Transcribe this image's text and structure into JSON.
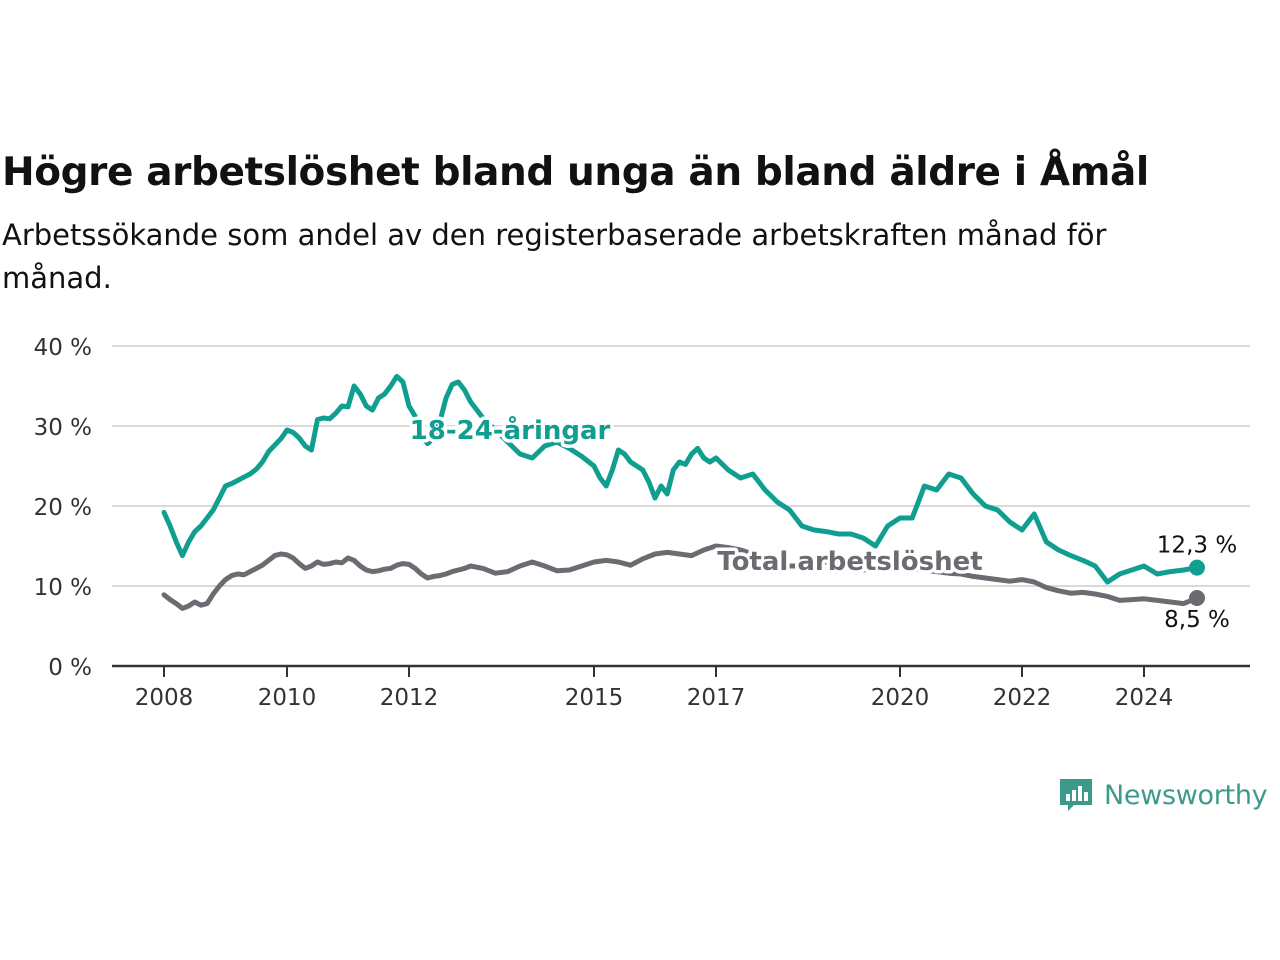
{
  "title": "Högre arbetslöshet bland unga än bland äldre i Åmål",
  "subtitle": "Arbetssökande som andel av den registerbaserade arbetskraften månad för månad.",
  "brand": {
    "name": "Newsworthy",
    "icon": "newsworthy-logo-icon",
    "color": "#3d9a8b"
  },
  "chart_data": {
    "type": "line",
    "y_ticks": [
      "0 %",
      "10 %",
      "20 %",
      "30 %",
      "40 %"
    ],
    "ylim": [
      0,
      40
    ],
    "x_ticks": [
      {
        "label": "2008",
        "value": 2008.0
      },
      {
        "label": "2010",
        "value": 2010.0
      },
      {
        "label": "2012",
        "value": 2012.0
      },
      {
        "label": "2015",
        "value": 2015.0
      },
      {
        "label": "2017",
        "value": 2017.0
      },
      {
        "label": "2020",
        "value": 2020.0
      },
      {
        "label": "2022",
        "value": 2022.0
      },
      {
        "label": "2024",
        "value": 2024.0
      }
    ],
    "xlim": [
      2006.2,
      2024.8
    ],
    "grid": true,
    "series": [
      {
        "name": "18-24-åringar",
        "color": "#109e90",
        "end_label": "12,3 %",
        "x": [
          2008.0,
          2008.1,
          2008.2,
          2008.3,
          2008.4,
          2008.5,
          2008.6,
          2008.7,
          2008.8,
          2008.9,
          2009.0,
          2009.1,
          2009.2,
          2009.3,
          2009.4,
          2009.5,
          2009.6,
          2009.7,
          2009.8,
          2009.9,
          2010.0,
          2010.1,
          2010.2,
          2010.3,
          2010.4,
          2010.5,
          2010.6,
          2010.7,
          2010.8,
          2010.9,
          2011.0,
          2011.1,
          2011.2,
          2011.3,
          2011.4,
          2011.5,
          2011.6,
          2011.7,
          2011.8,
          2011.9,
          2012.0,
          2012.1,
          2012.2,
          2012.3,
          2012.4,
          2012.5,
          2012.6,
          2012.7,
          2012.8,
          2012.9,
          2013.0,
          2013.2,
          2013.4,
          2013.6,
          2013.8,
          2014.0,
          2014.2,
          2014.4,
          2014.6,
          2014.8,
          2015.0,
          2015.1,
          2015.2,
          2015.3,
          2015.4,
          2015.5,
          2015.6,
          2015.7,
          2015.8,
          2015.9,
          2016.0,
          2016.1,
          2016.2,
          2016.3,
          2016.4,
          2016.5,
          2016.6,
          2016.7,
          2016.8,
          2016.9,
          2017.0,
          2017.2,
          2017.4,
          2017.6,
          2017.8,
          2018.0,
          2018.2,
          2018.4,
          2018.6,
          2018.8,
          2019.0,
          2019.2,
          2019.4,
          2019.6,
          2019.8,
          2020.0,
          2020.2,
          2020.4,
          2020.6,
          2020.8,
          2021.0,
          2021.2,
          2021.4,
          2021.6,
          2021.8,
          2022.0,
          2022.2,
          2022.4,
          2022.6,
          2022.8,
          2023.0,
          2023.2,
          2023.4,
          2023.6,
          2023.8,
          2024.0,
          2024.2,
          2024.4,
          2024.6,
          2024.8
        ],
        "y": [
          19.2,
          17.5,
          15.5,
          13.8,
          15.5,
          16.8,
          17.5,
          18.5,
          19.5,
          21.0,
          22.5,
          22.8,
          23.2,
          23.6,
          24.0,
          24.6,
          25.5,
          26.8,
          27.6,
          28.4,
          29.5,
          29.2,
          28.5,
          27.5,
          27.0,
          30.8,
          31.0,
          30.9,
          31.6,
          32.5,
          32.4,
          35.0,
          34.0,
          32.5,
          32.0,
          33.5,
          34.0,
          35.0,
          36.2,
          35.5,
          32.5,
          31.2,
          29.0,
          27.8,
          28.5,
          30.5,
          33.5,
          35.2,
          35.5,
          34.5,
          33.0,
          31.0,
          29.5,
          28.0,
          26.5,
          26.0,
          27.5,
          28.0,
          27.2,
          26.2,
          25.0,
          23.5,
          22.5,
          24.5,
          27.0,
          26.5,
          25.5,
          25.0,
          24.5,
          23.0,
          21.0,
          22.5,
          21.5,
          24.5,
          25.5,
          25.2,
          26.5,
          27.2,
          26.0,
          25.5,
          26.0,
          24.5,
          23.5,
          24.0,
          22.0,
          20.5,
          19.5,
          17.5,
          17.0,
          16.8,
          16.5,
          16.5,
          16.0,
          15.0,
          17.5,
          18.5,
          18.5,
          22.5,
          22.0,
          24.0,
          23.5,
          21.5,
          20.0,
          19.5,
          18.0,
          17.0,
          19.0,
          15.5,
          14.5,
          13.8,
          13.2,
          12.5,
          10.5,
          11.5,
          12.0,
          12.5,
          11.5,
          11.8,
          12.0,
          12.3
        ]
      },
      {
        "name": "Total arbetslöshet",
        "color": "#6e6a72",
        "end_label": "8,5 %",
        "x": [
          2008.0,
          2008.1,
          2008.2,
          2008.3,
          2008.4,
          2008.5,
          2008.6,
          2008.7,
          2008.8,
          2008.9,
          2009.0,
          2009.1,
          2009.2,
          2009.3,
          2009.4,
          2009.5,
          2009.6,
          2009.7,
          2009.8,
          2009.9,
          2010.0,
          2010.1,
          2010.2,
          2010.3,
          2010.4,
          2010.5,
          2010.6,
          2010.7,
          2010.8,
          2010.9,
          2011.0,
          2011.1,
          2011.2,
          2011.3,
          2011.4,
          2011.5,
          2011.6,
          2011.7,
          2011.8,
          2011.9,
          2012.0,
          2012.1,
          2012.2,
          2012.3,
          2012.4,
          2012.5,
          2012.6,
          2012.7,
          2012.8,
          2012.9,
          2013.0,
          2013.2,
          2013.4,
          2013.6,
          2013.8,
          2014.0,
          2014.2,
          2014.4,
          2014.6,
          2014.8,
          2015.0,
          2015.2,
          2015.4,
          2015.6,
          2015.8,
          2016.0,
          2016.2,
          2016.4,
          2016.6,
          2016.8,
          2017.0,
          2017.2,
          2017.4,
          2017.6,
          2017.8,
          2018.0,
          2018.2,
          2018.4,
          2018.6,
          2018.8,
          2019.0,
          2019.2,
          2019.4,
          2019.6,
          2019.8,
          2020.0,
          2020.2,
          2020.4,
          2020.6,
          2020.8,
          2021.0,
          2021.2,
          2021.4,
          2021.6,
          2021.8,
          2022.0,
          2022.2,
          2022.4,
          2022.6,
          2022.8,
          2023.0,
          2023.2,
          2023.4,
          2023.6,
          2023.8,
          2024.0,
          2024.2,
          2024.4,
          2024.6,
          2024.8
        ],
        "y": [
          8.9,
          8.3,
          7.8,
          7.2,
          7.5,
          8.0,
          7.6,
          7.8,
          9.0,
          10.0,
          10.8,
          11.3,
          11.5,
          11.4,
          11.8,
          12.2,
          12.6,
          13.2,
          13.8,
          14.0,
          13.9,
          13.5,
          12.8,
          12.2,
          12.5,
          13.0,
          12.7,
          12.8,
          13.0,
          12.9,
          13.5,
          13.2,
          12.5,
          12.0,
          11.8,
          11.9,
          12.1,
          12.2,
          12.6,
          12.8,
          12.7,
          12.2,
          11.5,
          11.0,
          11.2,
          11.3,
          11.5,
          11.8,
          12.0,
          12.2,
          12.5,
          12.2,
          11.6,
          11.8,
          12.5,
          13.0,
          12.5,
          11.9,
          12.0,
          12.5,
          13.0,
          13.2,
          13.0,
          12.6,
          13.4,
          14.0,
          14.2,
          14.0,
          13.8,
          14.5,
          15.0,
          14.8,
          14.5,
          14.0,
          13.2,
          13.0,
          12.5,
          12.5,
          12.8,
          13.0,
          12.8,
          12.2,
          12.0,
          12.2,
          12.4,
          12.3,
          12.1,
          12.0,
          11.8,
          11.6,
          11.5,
          11.2,
          11.0,
          10.8,
          10.6,
          10.8,
          10.5,
          9.8,
          9.4,
          9.1,
          9.2,
          9.0,
          8.7,
          8.2,
          8.3,
          8.4,
          8.2,
          8.0,
          7.8,
          8.5
        ]
      }
    ]
  }
}
